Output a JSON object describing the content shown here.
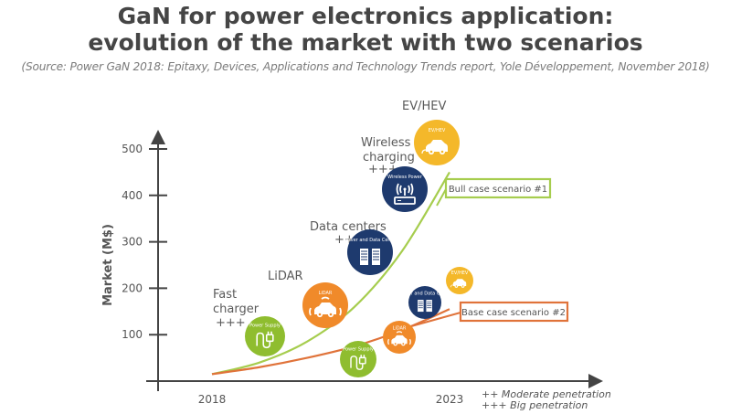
{
  "header": {
    "title_line1": "GaN for power electronics application:",
    "title_line2": "evolution of the market with two scenarios",
    "source": "(Source: Power GaN 2018: Epitaxy, Devices, Applications and Technology Trends report, Yole Développement, November 2018)"
  },
  "colors": {
    "bull": "#a6cd4e",
    "base": "#e0733a",
    "green": "#8fbd2f",
    "orange": "#f08a2a",
    "navy": "#1e3a6e",
    "yellow": "#f4b82a",
    "axis": "#444444"
  },
  "chart_data": {
    "type": "line",
    "title": "GaN for power electronics application: evolution of the market with two scenarios",
    "xlabel": "",
    "ylabel": "Market (M$)",
    "xlim": [
      2018,
      2023
    ],
    "ylim": [
      0,
      500
    ],
    "yticks": [
      100,
      200,
      300,
      400,
      500
    ],
    "xticks": [
      2018,
      2023
    ],
    "xtick_labels": [
      "2018",
      "2023"
    ],
    "ytick_labels": [
      "100",
      "200",
      "300",
      "400",
      "500"
    ],
    "grid": false,
    "series": [
      {
        "name": "Bull case scenario #1",
        "color": "#a6cd4e",
        "x": [
          2018,
          2019,
          2020,
          2021,
          2022,
          2023
        ],
        "y": [
          15,
          40,
          85,
          160,
          280,
          450
        ]
      },
      {
        "name": "Base case scenario #2",
        "color": "#e0733a",
        "x": [
          2018,
          2019,
          2020,
          2021,
          2022,
          2023
        ],
        "y": [
          15,
          30,
          50,
          75,
          110,
          155
        ]
      }
    ],
    "annotations": [
      {
        "label": "Bull case scenario #1",
        "series": 0
      },
      {
        "label": "Base case scenario #2",
        "series": 1
      }
    ],
    "applications": [
      {
        "name": "Fast charger",
        "penetration": "+++",
        "icon": "power-supply",
        "icon_text": "Power Supply",
        "color": "orange-none",
        "year": 2019.1,
        "value": 100,
        "scenario": "bull"
      },
      {
        "name": "LiDAR",
        "penetration": "",
        "icon": "lidar-car",
        "icon_text": "LiDAR",
        "year": 2020.4,
        "value": 170,
        "scenario": "bull"
      },
      {
        "name": "Data centers",
        "penetration": "++",
        "icon": "server",
        "icon_text": "Server and Data Center",
        "year": 2021.4,
        "value": 290,
        "scenario": "bull"
      },
      {
        "name": "Wireless charging",
        "penetration": "+++",
        "icon": "wireless-power",
        "icon_text": "Wireless Power",
        "year": 2022.1,
        "value": 420,
        "scenario": "bull"
      },
      {
        "name": "EV/HEV",
        "penetration": "",
        "icon": "ev-car",
        "icon_text": "EV/HEV",
        "year": 2022.8,
        "value": 520,
        "scenario": "bull"
      },
      {
        "name": "Power Supply",
        "penetration": "",
        "icon": "power-supply",
        "icon_text": "Power Supply",
        "year": 2021.0,
        "value": 50,
        "scenario": "base"
      },
      {
        "name": "LiDAR",
        "penetration": "",
        "icon": "lidar-car",
        "icon_text": "LiDAR",
        "year": 2021.8,
        "value": 95,
        "scenario": "base"
      },
      {
        "name": "Data centers",
        "penetration": "",
        "icon": "server",
        "icon_text": "Server and Data Center",
        "year": 2022.4,
        "value": 170,
        "scenario": "base"
      },
      {
        "name": "EV/HEV",
        "penetration": "",
        "icon": "ev-car",
        "icon_text": "EV/HEV",
        "year": 2023.1,
        "value": 215,
        "scenario": "base"
      }
    ],
    "legend_notes": [
      "++ Moderate penetration",
      "+++ Big penetration"
    ]
  }
}
